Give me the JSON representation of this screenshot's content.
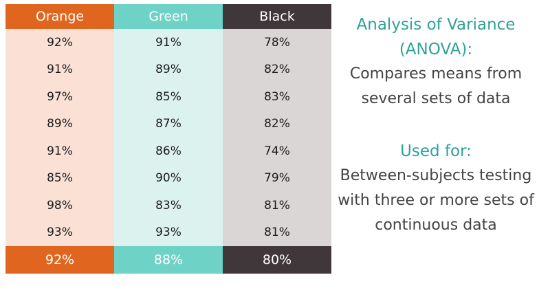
{
  "table": {
    "columns": [
      {
        "header": "Orange",
        "values": [
          "92%",
          "91%",
          "97%",
          "89%",
          "91%",
          "85%",
          "98%",
          "93%"
        ],
        "mean": "92%",
        "header_color": "#e0661f",
        "body_color": "#fbe0d6"
      },
      {
        "header": "Green",
        "values": [
          "91%",
          "89%",
          "85%",
          "87%",
          "86%",
          "90%",
          "83%",
          "93%"
        ],
        "mean": "88%",
        "header_color": "#6fd2c6",
        "body_color": "#dcf2ef"
      },
      {
        "header": "Black",
        "values": [
          "78%",
          "82%",
          "83%",
          "82%",
          "74%",
          "79%",
          "81%",
          "81%"
        ],
        "mean": "80%",
        "header_color": "#3f3739",
        "body_color": "#d9d6d5"
      }
    ]
  },
  "side": {
    "title_line1": "Analysis of Variance",
    "title_line2": "(ANOVA):",
    "desc_line1": "Compares means from",
    "desc_line2": "several sets of data",
    "used_for_heading": "Used for:",
    "usage_line1": "Between-subjects testing",
    "usage_line2": "with three or more sets of",
    "usage_line3": "continuous data"
  },
  "colors": {
    "accent_teal": "#2fa296",
    "text_dark": "#444444"
  }
}
